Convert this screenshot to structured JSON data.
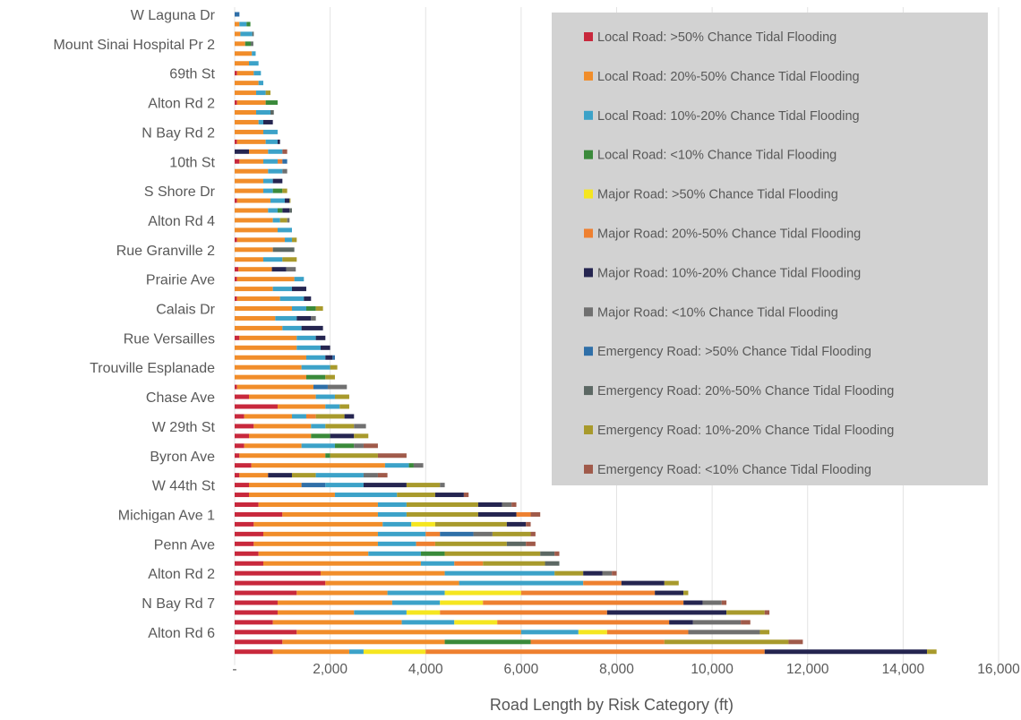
{
  "chart_data": {
    "type": "bar",
    "orientation": "horizontal",
    "stacked": true,
    "title": "",
    "xlabel": "Road Length by Risk Category (ft)",
    "ylabel": "",
    "xlim": [
      0,
      16000
    ],
    "x_ticks": [
      0,
      2000,
      4000,
      6000,
      8000,
      10000,
      12000,
      14000,
      16000
    ],
    "x_tick_labels": [
      "-",
      "2,000",
      "4,000",
      "6,000",
      "8,000",
      "10,000",
      "12,000",
      "14,000",
      "16,000"
    ],
    "grid": "vertical",
    "legend_position": "top-right",
    "category_labels_visible": [
      "W Laguna Dr",
      "Mount Sinai Hospital Pr 2",
      "69th St",
      "Alton Rd 2",
      "N Bay Rd 2",
      "10th St",
      "S Shore Dr",
      "Alton Rd 4",
      "Rue Granville 2",
      "Prairie Ave",
      "Calais Dr",
      "Rue Versailles",
      "Trouville Esplanade",
      "Chase Ave",
      "W 29th St",
      "Byron Ave",
      "W 44th St",
      "Michigan Ave 1",
      "Penn Ave",
      "Alton Rd 2",
      "N Bay Rd 7",
      "Alton Rd 6"
    ],
    "label_every": 3,
    "series": [
      {
        "name": "Local Road: >50% Chance Tidal Flooding",
        "color": "#c8283c"
      },
      {
        "name": "Local Road: 20%-50% Chance Tidal Flooding",
        "color": "#f18d2a"
      },
      {
        "name": "Local Road: 10%-20% Chance Tidal Flooding",
        "color": "#3ca2c8"
      },
      {
        "name": "Local Road: <10% Chance Tidal Flooding",
        "color": "#3a8a3a"
      },
      {
        "name": "Major Road: >50% Chance Tidal Flooding",
        "color": "#f5e620"
      },
      {
        "name": "Major Road: 20%-50% Chance Tidal Flooding",
        "color": "#ee8030"
      },
      {
        "name": "Major Road: 10%-20% Chance Tidal Flooding",
        "color": "#252550"
      },
      {
        "name": "Major Road: <10% Chance Tidal Flooding",
        "color": "#707070"
      },
      {
        "name": "Emergency Road: >50% Chance Tidal Flooding",
        "color": "#2f6fa8"
      },
      {
        "name": "Emergency Road: 20%-50% Chance Tidal Flooding",
        "color": "#5c6864"
      },
      {
        "name": "Emergency Road: 10%-20% Chance Tidal Flooding",
        "color": "#a89a2c"
      },
      {
        "name": "Emergency Road: <10% Chance Tidal Flooding",
        "color": "#a05a4a"
      }
    ],
    "bars": [
      [
        [
          8,
          100
        ]
      ],
      [
        [
          1,
          100
        ],
        [
          2,
          150
        ],
        [
          3,
          80
        ]
      ],
      [
        [
          1,
          120
        ],
        [
          2,
          250
        ],
        [
          9,
          30
        ]
      ],
      [
        [
          1,
          220
        ],
        [
          3,
          120
        ],
        [
          9,
          50
        ]
      ],
      [
        [
          1,
          360
        ],
        [
          2,
          80
        ]
      ],
      [
        [
          1,
          300
        ],
        [
          2,
          200
        ]
      ],
      [
        [
          0,
          50
        ],
        [
          1,
          350
        ],
        [
          2,
          150
        ]
      ],
      [
        [
          1,
          500
        ],
        [
          2,
          100
        ]
      ],
      [
        [
          1,
          450
        ],
        [
          2,
          200
        ],
        [
          10,
          100
        ]
      ],
      [
        [
          0,
          50
        ],
        [
          1,
          600
        ],
        [
          3,
          250
        ]
      ],
      [
        [
          1,
          450
        ],
        [
          2,
          300
        ],
        [
          9,
          70
        ]
      ],
      [
        [
          1,
          500
        ],
        [
          2,
          100
        ],
        [
          6,
          200
        ]
      ],
      [
        [
          1,
          600
        ],
        [
          2,
          300
        ]
      ],
      [
        [
          0,
          50
        ],
        [
          1,
          600
        ],
        [
          2,
          250
        ],
        [
          6,
          50
        ]
      ],
      [
        [
          6,
          300
        ],
        [
          1,
          400
        ],
        [
          2,
          300
        ],
        [
          11,
          100
        ]
      ],
      [
        [
          0,
          100
        ],
        [
          1,
          500
        ],
        [
          2,
          300
        ],
        [
          5,
          100
        ],
        [
          8,
          100
        ]
      ],
      [
        [
          1,
          700
        ],
        [
          2,
          300
        ],
        [
          7,
          100
        ]
      ],
      [
        [
          1,
          600
        ],
        [
          2,
          200
        ],
        [
          6,
          200
        ]
      ],
      [
        [
          1,
          600
        ],
        [
          2,
          200
        ],
        [
          3,
          200
        ],
        [
          10,
          100
        ]
      ],
      [
        [
          0,
          50
        ],
        [
          1,
          700
        ],
        [
          2,
          300
        ],
        [
          6,
          100
        ],
        [
          10,
          20
        ]
      ],
      [
        [
          1,
          700
        ],
        [
          2,
          200
        ],
        [
          3,
          100
        ],
        [
          6,
          150
        ],
        [
          9,
          50
        ]
      ],
      [
        [
          1,
          800
        ],
        [
          2,
          150
        ],
        [
          10,
          150
        ],
        [
          7,
          50
        ]
      ],
      [
        [
          1,
          900
        ],
        [
          2,
          300
        ]
      ],
      [
        [
          0,
          50
        ],
        [
          1,
          1000
        ],
        [
          2,
          150
        ],
        [
          10,
          100
        ]
      ],
      [
        [
          1,
          800
        ],
        [
          9,
          450
        ]
      ],
      [
        [
          1,
          600
        ],
        [
          2,
          400
        ],
        [
          10,
          300
        ]
      ],
      [
        [
          0,
          80
        ],
        [
          1,
          700
        ],
        [
          6,
          300
        ],
        [
          7,
          200
        ]
      ],
      [
        [
          0,
          50
        ],
        [
          1,
          1200
        ],
        [
          2,
          200
        ]
      ],
      [
        [
          1,
          800
        ],
        [
          2,
          400
        ],
        [
          6,
          300
        ]
      ],
      [
        [
          0,
          50
        ],
        [
          1,
          900
        ],
        [
          2,
          500
        ],
        [
          6,
          150
        ]
      ],
      [
        [
          1,
          1200
        ],
        [
          2,
          300
        ],
        [
          3,
          200
        ],
        [
          10,
          150
        ]
      ],
      [
        [
          1,
          850
        ],
        [
          2,
          450
        ],
        [
          6,
          300
        ],
        [
          7,
          100
        ]
      ],
      [
        [
          1,
          1000
        ],
        [
          2,
          400
        ],
        [
          6,
          450
        ]
      ],
      [
        [
          0,
          100
        ],
        [
          1,
          1200
        ],
        [
          2,
          400
        ],
        [
          6,
          200
        ]
      ],
      [
        [
          1,
          1300
        ],
        [
          2,
          500
        ],
        [
          6,
          200
        ]
      ],
      [
        [
          1,
          1500
        ],
        [
          2,
          400
        ],
        [
          6,
          150
        ],
        [
          8,
          50
        ]
      ],
      [
        [
          1,
          1400
        ],
        [
          2,
          600
        ],
        [
          10,
          150
        ]
      ],
      [
        [
          1,
          1500
        ],
        [
          3,
          400
        ],
        [
          10,
          200
        ]
      ],
      [
        [
          0,
          50
        ],
        [
          1,
          1600
        ],
        [
          8,
          300
        ],
        [
          7,
          400
        ]
      ],
      [
        [
          0,
          300
        ],
        [
          1,
          1400
        ],
        [
          2,
          400
        ],
        [
          10,
          300
        ]
      ],
      [
        [
          0,
          900
        ],
        [
          1,
          1000
        ],
        [
          2,
          300
        ],
        [
          10,
          200
        ]
      ],
      [
        [
          0,
          200
        ],
        [
          1,
          1000
        ],
        [
          2,
          300
        ],
        [
          5,
          200
        ],
        [
          10,
          600
        ],
        [
          6,
          200
        ]
      ],
      [
        [
          0,
          400
        ],
        [
          1,
          1200
        ],
        [
          2,
          300
        ],
        [
          10,
          600
        ],
        [
          7,
          250
        ]
      ],
      [
        [
          0,
          300
        ],
        [
          1,
          1300
        ],
        [
          3,
          400
        ],
        [
          6,
          500
        ],
        [
          10,
          300
        ]
      ],
      [
        [
          0,
          200
        ],
        [
          1,
          1200
        ],
        [
          2,
          700
        ],
        [
          3,
          400
        ],
        [
          7,
          200
        ],
        [
          11,
          300
        ]
      ],
      [
        [
          0,
          100
        ],
        [
          1,
          1800
        ],
        [
          3,
          100
        ],
        [
          10,
          1000
        ],
        [
          11,
          600
        ]
      ],
      [
        [
          0,
          350
        ],
        [
          1,
          2800
        ],
        [
          2,
          500
        ],
        [
          3,
          100
        ],
        [
          7,
          200
        ]
      ],
      [
        [
          0,
          100
        ],
        [
          1,
          600
        ],
        [
          6,
          500
        ],
        [
          10,
          500
        ],
        [
          2,
          1000
        ],
        [
          7,
          300
        ],
        [
          11,
          200
        ]
      ],
      [
        [
          0,
          300
        ],
        [
          1,
          1100
        ],
        [
          8,
          500
        ],
        [
          2,
          800
        ],
        [
          6,
          900
        ],
        [
          10,
          700
        ],
        [
          7,
          100
        ]
      ],
      [
        [
          0,
          300
        ],
        [
          1,
          1800
        ],
        [
          2,
          1300
        ],
        [
          10,
          800
        ],
        [
          6,
          600
        ],
        [
          11,
          100
        ]
      ],
      [
        [
          0,
          500
        ],
        [
          1,
          2500
        ],
        [
          2,
          600
        ],
        [
          10,
          1500
        ],
        [
          6,
          500
        ],
        [
          7,
          200
        ],
        [
          11,
          100
        ]
      ],
      [
        [
          0,
          1000
        ],
        [
          1,
          2000
        ],
        [
          2,
          600
        ],
        [
          10,
          1500
        ],
        [
          6,
          800
        ],
        [
          5,
          300
        ],
        [
          11,
          200
        ]
      ],
      [
        [
          0,
          400
        ],
        [
          1,
          2700
        ],
        [
          2,
          600
        ],
        [
          4,
          500
        ],
        [
          10,
          1500
        ],
        [
          6,
          400
        ],
        [
          11,
          100
        ]
      ],
      [
        [
          0,
          600
        ],
        [
          1,
          2400
        ],
        [
          2,
          1000
        ],
        [
          5,
          300
        ],
        [
          8,
          700
        ],
        [
          7,
          400
        ],
        [
          10,
          800
        ],
        [
          11,
          100
        ]
      ],
      [
        [
          0,
          400
        ],
        [
          1,
          2600
        ],
        [
          2,
          800
        ],
        [
          5,
          400
        ],
        [
          10,
          1500
        ],
        [
          9,
          400
        ],
        [
          11,
          200
        ]
      ],
      [
        [
          0,
          500
        ],
        [
          1,
          2300
        ],
        [
          2,
          1100
        ],
        [
          3,
          500
        ],
        [
          10,
          2000
        ],
        [
          9,
          300
        ],
        [
          11,
          100
        ]
      ],
      [
        [
          0,
          600
        ],
        [
          1,
          3300
        ],
        [
          2,
          700
        ],
        [
          5,
          600
        ],
        [
          10,
          1300
        ],
        [
          9,
          300
        ]
      ],
      [
        [
          0,
          1800
        ],
        [
          1,
          2600
        ],
        [
          2,
          2300
        ],
        [
          10,
          600
        ],
        [
          6,
          400
        ],
        [
          7,
          200
        ],
        [
          11,
          100
        ]
      ],
      [
        [
          0,
          1900
        ],
        [
          1,
          2800
        ],
        [
          2,
          2600
        ],
        [
          5,
          800
        ],
        [
          6,
          900
        ],
        [
          10,
          300
        ]
      ],
      [
        [
          0,
          1300
        ],
        [
          1,
          1900
        ],
        [
          2,
          1200
        ],
        [
          4,
          1600
        ],
        [
          5,
          2800
        ],
        [
          6,
          600
        ],
        [
          10,
          100
        ]
      ],
      [
        [
          0,
          900
        ],
        [
          1,
          2400
        ],
        [
          2,
          1000
        ],
        [
          4,
          900
        ],
        [
          5,
          4200
        ],
        [
          6,
          400
        ],
        [
          7,
          400
        ],
        [
          11,
          100
        ]
      ],
      [
        [
          0,
          900
        ],
        [
          1,
          1600
        ],
        [
          2,
          1100
        ],
        [
          4,
          700
        ],
        [
          5,
          3500
        ],
        [
          6,
          2500
        ],
        [
          10,
          800
        ],
        [
          11,
          100
        ]
      ],
      [
        [
          0,
          800
        ],
        [
          1,
          2700
        ],
        [
          2,
          1100
        ],
        [
          4,
          900
        ],
        [
          5,
          3600
        ],
        [
          6,
          500
        ],
        [
          7,
          1000
        ],
        [
          11,
          200
        ]
      ],
      [
        [
          0,
          1300
        ],
        [
          1,
          4700
        ],
        [
          2,
          1200
        ],
        [
          4,
          600
        ],
        [
          5,
          1700
        ],
        [
          7,
          1500
        ],
        [
          10,
          200
        ]
      ],
      [
        [
          0,
          1000
        ],
        [
          1,
          3400
        ],
        [
          3,
          1800
        ],
        [
          5,
          2800
        ],
        [
          10,
          2600
        ],
        [
          11,
          300
        ]
      ],
      [
        [
          0,
          800
        ],
        [
          1,
          1600
        ],
        [
          2,
          300
        ],
        [
          4,
          1300
        ],
        [
          5,
          7100
        ],
        [
          6,
          3400
        ],
        [
          10,
          200
        ]
      ]
    ]
  }
}
